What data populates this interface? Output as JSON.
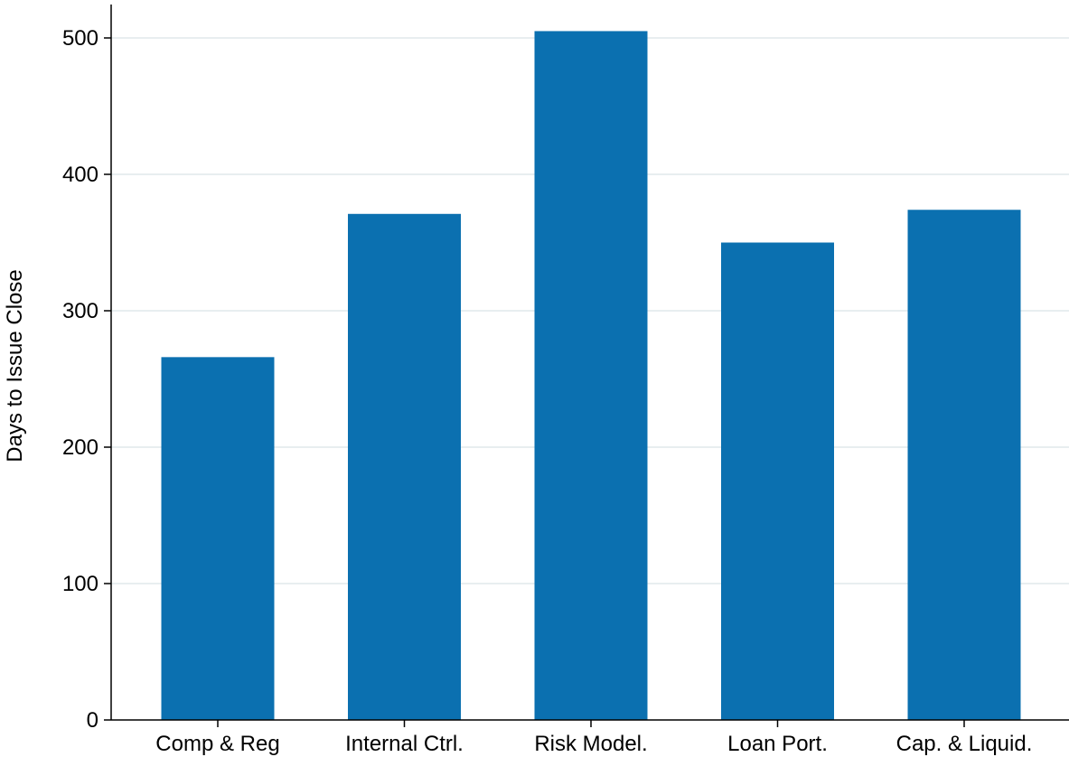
{
  "chart_data": {
    "type": "bar",
    "title": "",
    "xlabel": "",
    "ylabel": "Days to Issue Close",
    "categories": [
      "Comp & Reg",
      "Internal Ctrl.",
      "Risk Model.",
      "Loan Port.",
      "Cap. & Liquid."
    ],
    "values": [
      266,
      371,
      505,
      350,
      374
    ],
    "ylim": [
      0,
      525
    ],
    "yticks": [
      0,
      100,
      200,
      300,
      400,
      500
    ],
    "grid": true,
    "legend": "none",
    "colors": {
      "bar": "#0b70b0",
      "grid": "#e8eef0",
      "axis": "#000000"
    }
  }
}
